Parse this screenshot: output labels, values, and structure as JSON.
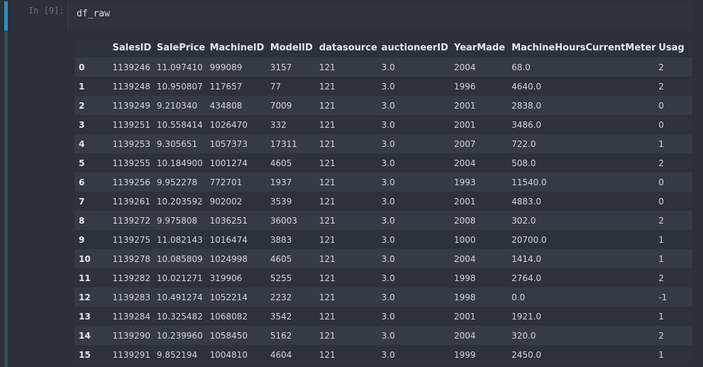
{
  "input_cell": {
    "prompt": "In [9]:",
    "code": "df_raw"
  },
  "table": {
    "index_header": "",
    "columns": [
      "SalesID",
      "SalePrice",
      "MachineID",
      "ModelID",
      "datasource",
      "auctioneerID",
      "YearMade",
      "MachineHoursCurrentMeter",
      "Usag"
    ],
    "rows": [
      {
        "index": "0",
        "cells": [
          "1139246",
          "11.097410",
          "999089",
          "3157",
          "121",
          "3.0",
          "2004",
          "68.0",
          "2"
        ]
      },
      {
        "index": "1",
        "cells": [
          "1139248",
          "10.950807",
          "117657",
          "77",
          "121",
          "3.0",
          "1996",
          "4640.0",
          "2"
        ]
      },
      {
        "index": "2",
        "cells": [
          "1139249",
          "9.210340",
          "434808",
          "7009",
          "121",
          "3.0",
          "2001",
          "2838.0",
          "0"
        ]
      },
      {
        "index": "3",
        "cells": [
          "1139251",
          "10.558414",
          "1026470",
          "332",
          "121",
          "3.0",
          "2001",
          "3486.0",
          "0"
        ]
      },
      {
        "index": "4",
        "cells": [
          "1139253",
          "9.305651",
          "1057373",
          "17311",
          "121",
          "3.0",
          "2007",
          "722.0",
          "1"
        ]
      },
      {
        "index": "5",
        "cells": [
          "1139255",
          "10.184900",
          "1001274",
          "4605",
          "121",
          "3.0",
          "2004",
          "508.0",
          "2"
        ]
      },
      {
        "index": "6",
        "cells": [
          "1139256",
          "9.952278",
          "772701",
          "1937",
          "121",
          "3.0",
          "1993",
          "11540.0",
          "0"
        ]
      },
      {
        "index": "7",
        "cells": [
          "1139261",
          "10.203592",
          "902002",
          "3539",
          "121",
          "3.0",
          "2001",
          "4883.0",
          "0"
        ]
      },
      {
        "index": "8",
        "cells": [
          "1139272",
          "9.975808",
          "1036251",
          "36003",
          "121",
          "3.0",
          "2008",
          "302.0",
          "2"
        ]
      },
      {
        "index": "9",
        "cells": [
          "1139275",
          "11.082143",
          "1016474",
          "3883",
          "121",
          "3.0",
          "1000",
          "20700.0",
          "1"
        ]
      },
      {
        "index": "10",
        "cells": [
          "1139278",
          "10.085809",
          "1024998",
          "4605",
          "121",
          "3.0",
          "2004",
          "1414.0",
          "1"
        ]
      },
      {
        "index": "11",
        "cells": [
          "1139282",
          "10.021271",
          "319906",
          "5255",
          "121",
          "3.0",
          "1998",
          "2764.0",
          "2"
        ]
      },
      {
        "index": "12",
        "cells": [
          "1139283",
          "10.491274",
          "1052214",
          "2232",
          "121",
          "3.0",
          "1998",
          "0.0",
          "-1"
        ]
      },
      {
        "index": "13",
        "cells": [
          "1139284",
          "10.325482",
          "1068082",
          "3542",
          "121",
          "3.0",
          "2001",
          "1921.0",
          "1"
        ]
      },
      {
        "index": "14",
        "cells": [
          "1139290",
          "10.239960",
          "1058450",
          "5162",
          "121",
          "3.0",
          "2004",
          "320.0",
          "2"
        ]
      },
      {
        "index": "15",
        "cells": [
          "1139291",
          "9.852194",
          "1004810",
          "4604",
          "121",
          "3.0",
          "1999",
          "2450.0",
          "1"
        ]
      }
    ]
  }
}
